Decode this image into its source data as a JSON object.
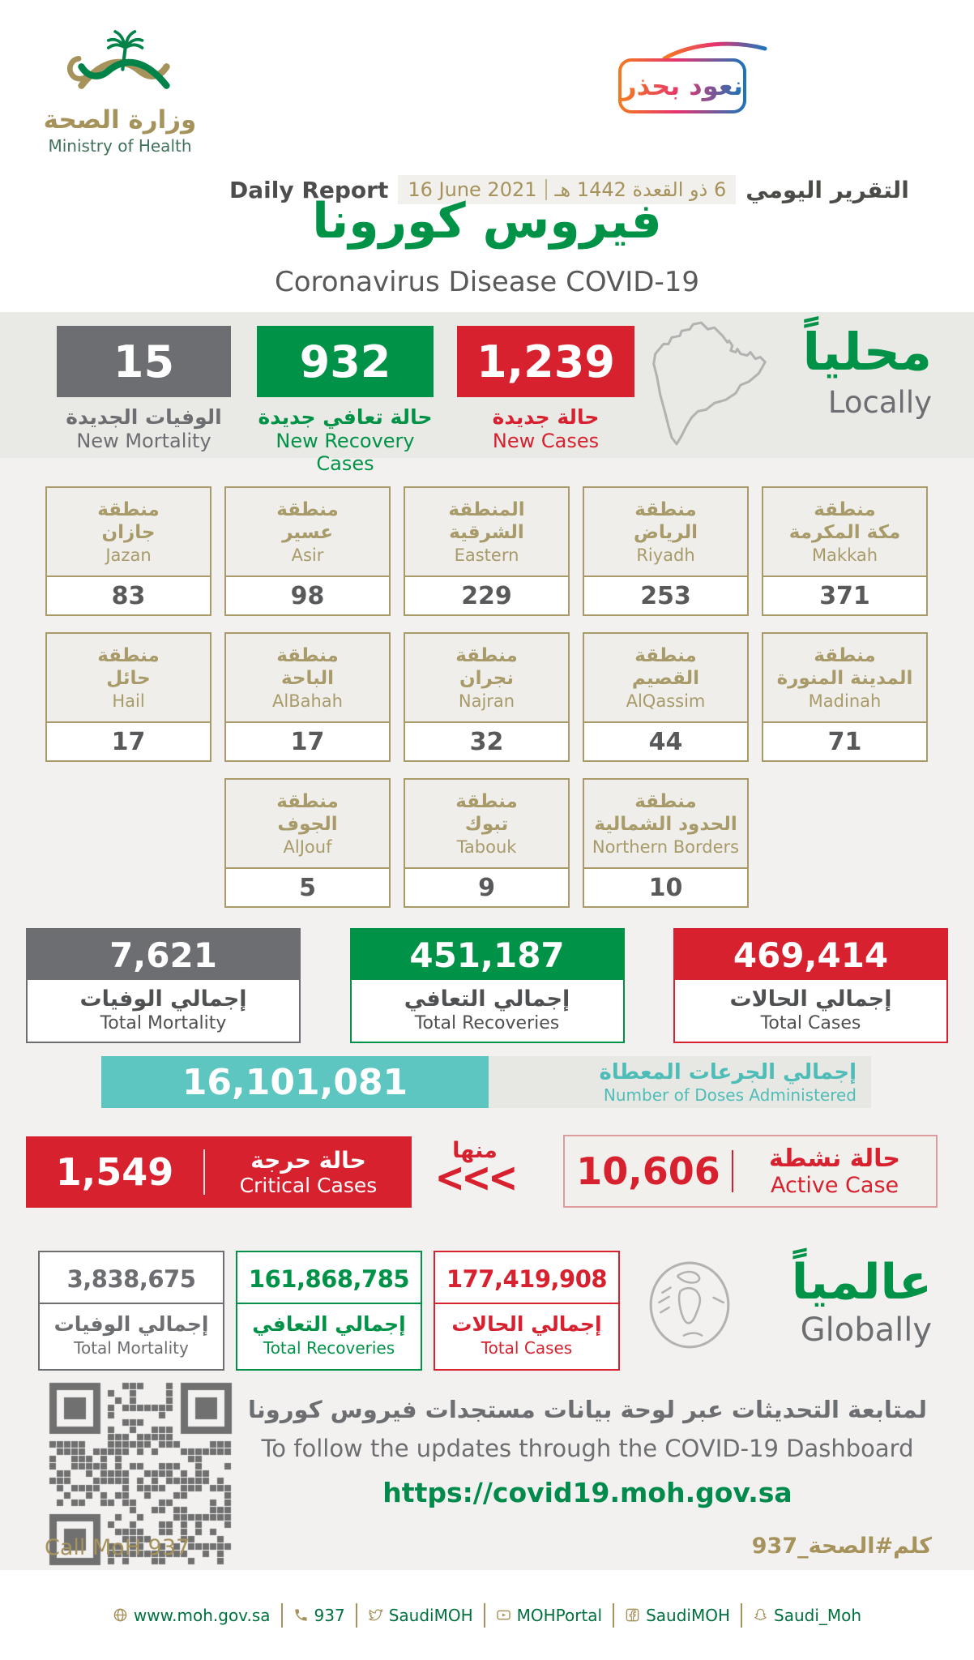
{
  "colors": {
    "green": "#009347",
    "red": "#D7212E",
    "gray": "#6D6E71",
    "gold": "#A6925B",
    "teal": "#5EC6C0",
    "badge_gradient": [
      "#F47B20",
      "#E8336D",
      "#1B75BB"
    ]
  },
  "header": {
    "ministry_ar": "وزارة الصحة",
    "ministry_en": "Ministry of Health",
    "badge": "نعود بحذر",
    "daily_report_en": "Daily Report",
    "daily_report_ar": "التقرير اليومي",
    "date_en": "16 June 2021",
    "date_hijri": "6 ذو القعدة 1442 هـ",
    "title_ar": "فيروس كورونا",
    "title_en": "Coronavirus Disease COVID-19"
  },
  "locally": {
    "heading_ar": "محلياً",
    "heading_en": "Locally",
    "stats": [
      {
        "value": "15",
        "label_ar": "الوفيات الجديدة",
        "label_en": "New Mortality",
        "color": "#6D6E71"
      },
      {
        "value": "932",
        "label_ar": "حالة تعافي جديدة",
        "label_en": "New Recovery Cases",
        "color": "#009347"
      },
      {
        "value": "1,239",
        "label_ar": "حالة جديدة",
        "label_en": "New Cases",
        "color": "#D7212E"
      }
    ]
  },
  "regions": {
    "row1": [
      {
        "ar1": "منطقة",
        "ar2": "جازان",
        "en": "Jazan",
        "value": "83"
      },
      {
        "ar1": "منطقة",
        "ar2": "عسير",
        "en": "Asir",
        "value": "98"
      },
      {
        "ar1": "المنطقة",
        "ar2": "الشرقية",
        "en": "Eastern",
        "value": "229"
      },
      {
        "ar1": "منطقة",
        "ar2": "الرياض",
        "en": "Riyadh",
        "value": "253"
      },
      {
        "ar1": "منطقة",
        "ar2": "مكة المكرمة",
        "en": "Makkah",
        "value": "371"
      }
    ],
    "row2": [
      {
        "ar1": "منطقة",
        "ar2": "حائل",
        "en": "Hail",
        "value": "17"
      },
      {
        "ar1": "منطقة",
        "ar2": "الباحة",
        "en": "AlBahah",
        "value": "17"
      },
      {
        "ar1": "منطقة",
        "ar2": "نجران",
        "en": "Najran",
        "value": "32"
      },
      {
        "ar1": "منطقة",
        "ar2": "القصيم",
        "en": "AlQassim",
        "value": "44"
      },
      {
        "ar1": "منطقة",
        "ar2": "المدينة المنورة",
        "en": "Madinah",
        "value": "71"
      }
    ],
    "row3": [
      {
        "ar1": "منطقة",
        "ar2": "الجوف",
        "en": "AlJouf",
        "value": "5"
      },
      {
        "ar1": "منطقة",
        "ar2": "تبوك",
        "en": "Tabouk",
        "value": "9"
      },
      {
        "ar1": "منطقة",
        "ar2": "الحدود الشمالية",
        "en": "Northern Borders",
        "value": "10"
      }
    ]
  },
  "totals": [
    {
      "value": "7,621",
      "label_ar": "إجمالي الوفيات",
      "label_en": "Total Mortality",
      "color": "#6D6E71"
    },
    {
      "value": "451,187",
      "label_ar": "إجمالي التعافي",
      "label_en": "Total Recoveries",
      "color": "#009347"
    },
    {
      "value": "469,414",
      "label_ar": "إجمالي الحالات",
      "label_en": "Total Cases",
      "color": "#D7212E"
    }
  ],
  "doses": {
    "value": "16,101,081",
    "label_ar": "إجمالي الجرعات المعطاة",
    "label_en": "Number of Doses Administered"
  },
  "critical": {
    "value": "1,549",
    "label_ar": "حالة حرجة",
    "label_en": "Critical Cases",
    "of_which_ar": "منها",
    "chevrons": "<<<"
  },
  "active": {
    "value": "10,606",
    "label_ar": "حالة نشطة",
    "label_en": "Active Case"
  },
  "globally": {
    "heading_ar": "عالمياً",
    "heading_en": "Globally",
    "totals": [
      {
        "value": "3,838,675",
        "label_ar": "إجمالي الوفيات",
        "label_en": "Total Mortality",
        "color": "#6D6E71"
      },
      {
        "value": "161,868,785",
        "label_ar": "إجمالي التعافي",
        "label_en": "Total Recoveries",
        "color": "#009347"
      },
      {
        "value": "177,419,908",
        "label_ar": "إجمالي الحالات",
        "label_en": "Total Cases",
        "color": "#D7212E"
      }
    ]
  },
  "dashboard": {
    "note_ar": "لمتابعة التحديثات عبر لوحة بيانات مستجدات فيروس كورونا",
    "note_en": "To follow the updates through the COVID-19 Dashboard",
    "url": "https://covid19.moh.gov.sa"
  },
  "footer": {
    "call_en": "Call MoH 937",
    "call_ar": "كلم#الصحة_937",
    "links": [
      {
        "icon": "globe-icon",
        "label": "www.moh.gov.sa"
      },
      {
        "icon": "phone-icon",
        "label": "937"
      },
      {
        "icon": "twitter-icon",
        "label": "SaudiMOH"
      },
      {
        "icon": "youtube-icon",
        "label": "MOHPortal"
      },
      {
        "icon": "facebook-icon",
        "label": "SaudiMOH"
      },
      {
        "icon": "snapchat-icon",
        "label": "Saudi_Moh"
      }
    ]
  }
}
